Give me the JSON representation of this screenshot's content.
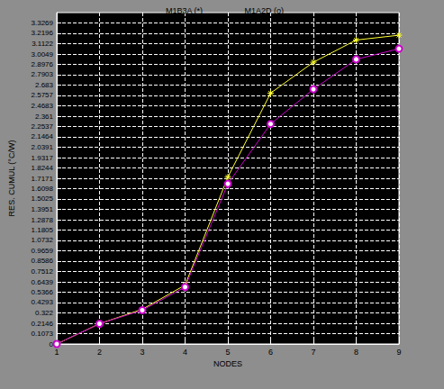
{
  "chart_data": {
    "type": "line",
    "x_label": "NODES",
    "y_label": "RES. CUMUL (°C/W)",
    "x": [
      1,
      2,
      3,
      4,
      5,
      6,
      7,
      8,
      9
    ],
    "series": [
      {
        "name": "M1B3A (*)",
        "color": "#ffff33",
        "marker": "asterisk",
        "values": [
          0,
          0.21,
          0.36,
          0.61,
          1.73,
          2.6,
          2.92,
          3.15,
          3.2
        ]
      },
      {
        "name": "M1A2D (o)",
        "color": "#cc00cc",
        "marker": "circle",
        "values": [
          0,
          0.21,
          0.35,
          0.59,
          1.66,
          2.28,
          2.64,
          2.95,
          3.06
        ]
      }
    ],
    "xlim": [
      1,
      9
    ],
    "xticks": [
      1,
      2,
      3,
      4,
      5,
      6,
      7,
      8,
      9
    ],
    "ylim": [
      0,
      3.4342
    ],
    "yticks": [
      0,
      0.1073,
      0.2146,
      0.322,
      0.4293,
      0.5366,
      0.6439,
      0.7512,
      0.8586,
      0.9659,
      1.0732,
      1.1805,
      1.2878,
      1.3951,
      1.5025,
      1.6098,
      1.7171,
      1.8244,
      1.9317,
      2.0391,
      2.1464,
      2.2537,
      2.361,
      2.4683,
      2.5757,
      2.683,
      2.7903,
      2.8976,
      3.0049,
      3.1122,
      3.2196,
      3.3269
    ],
    "grid": true,
    "legend": "top"
  }
}
